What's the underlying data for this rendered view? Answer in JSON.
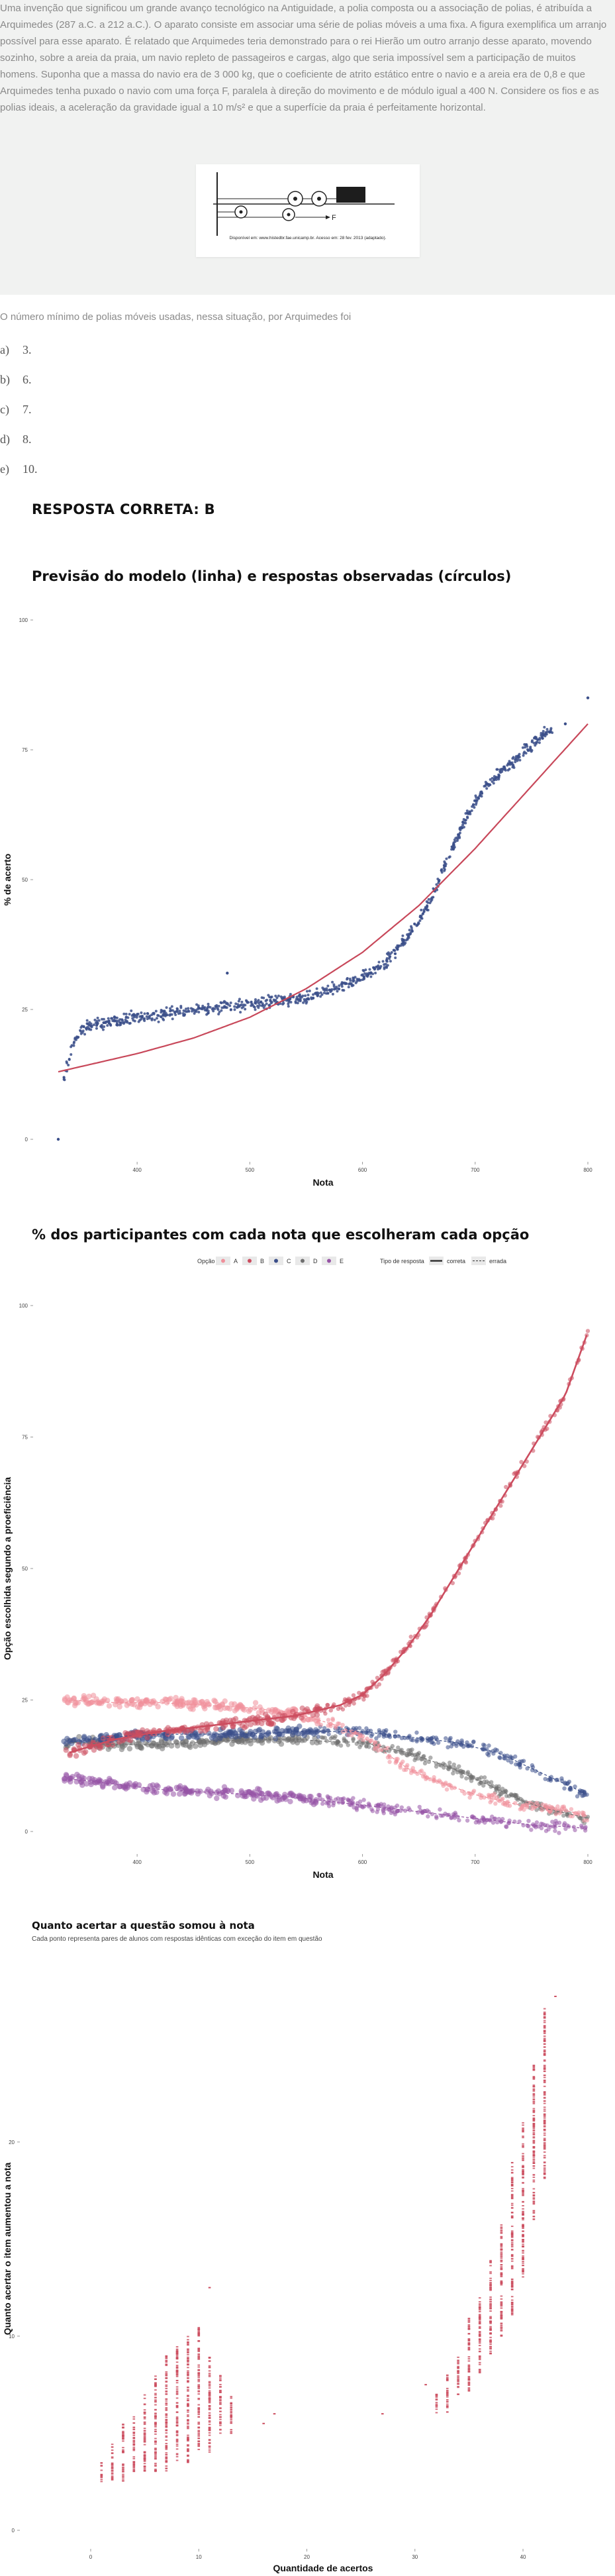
{
  "question": {
    "statement": "Uma invenção que significou um grande avanço tecnológico na Antiguidade, a polia composta ou a associação de polias, é atribuída a Arquimedes (287 a.C. a 212 a.C.). O aparato consiste em associar uma série de polias móveis a uma fixa. A figura exemplifica um arranjo possível para esse aparato. É relatado que Arquimedes teria demonstrado para o rei Hierão um outro arranjo desse aparato, movendo sozinho, sobre a areia da praia, um navio repleto de passageiros e cargas, algo que seria impossível sem a participação de muitos homens. Suponha que a massa do navio era de 3 000 kg, que o coeficiente de atrito estático entre o navio e a areia era de 0,8 e que Arquimedes tenha puxado o navio com uma força F, paralela à direção do movimento e de módulo igual a 400 N. Considere os fios e as polias ideais, a aceleração da gravidade igual a 10 m/s² e que a superfície da praia é perfeitamente horizontal.",
    "figure_caption": "Disponível em: www.histedbr.fae.unicamp.br. Acesso em: 28 fev. 2013 (adaptado).",
    "figure_force_label": "F",
    "prompt": "O número mínimo de polias móveis usadas, nessa situação, por Arquimedes foi",
    "alternatives": [
      {
        "letter": "a)",
        "text": "3."
      },
      {
        "letter": "b)",
        "text": "6."
      },
      {
        "letter": "c)",
        "text": "7."
      },
      {
        "letter": "d)",
        "text": "8."
      },
      {
        "letter": "e)",
        "text": "10."
      }
    ],
    "answer": "RESPOSTA CORRETA: B"
  },
  "colors": {
    "model_line": "#c8485a",
    "observed": "#3b4f8a",
    "A": "#f0909b",
    "B": "#cc4d5f",
    "C": "#3b4f8a",
    "D": "#6f6f6f",
    "E": "#9653a5",
    "accumulated": "#cc4d5f"
  },
  "chart_data": [
    {
      "type": "scatter",
      "title": "Previsão do modelo (linha) e respostas observadas (círculos)",
      "xlabel": "Nota",
      "ylabel": "% de acerto",
      "xlim": [
        330,
        800
      ],
      "ylim": [
        0,
        100
      ],
      "xticks": [
        400,
        500,
        600,
        700,
        800
      ],
      "yticks": [
        0,
        25,
        50,
        75,
        100
      ],
      "grid": false,
      "model_line": {
        "x": [
          330,
          360,
          400,
          450,
          500,
          550,
          600,
          650,
          700,
          750,
          800
        ],
        "y": [
          13,
          14.5,
          16.5,
          19.5,
          23.5,
          29,
          36,
          45,
          56,
          68,
          80
        ]
      },
      "observed": {
        "x": [
          330,
          335,
          340,
          345,
          350,
          360,
          370,
          380,
          400,
          420,
          440,
          460,
          480,
          500,
          520,
          540,
          560,
          580,
          600,
          620,
          640,
          650,
          660,
          670,
          680,
          690,
          700,
          710,
          720,
          730,
          740,
          750,
          760,
          780,
          800
        ],
        "y": [
          0,
          12,
          16,
          19,
          21,
          22,
          22.5,
          23,
          23.5,
          24,
          24.5,
          25,
          25.5,
          26,
          26.5,
          27,
          28,
          29.5,
          31,
          34,
          39,
          42,
          46,
          51,
          56,
          61,
          65,
          68,
          70,
          72,
          74,
          76,
          78,
          80,
          85
        ]
      }
    },
    {
      "type": "scatter",
      "title": "% dos participantes com cada nota que escolheram cada opção",
      "xlabel": "Nota",
      "ylabel": "Opção escolhida segundo a proeficiência",
      "xlim": [
        330,
        800
      ],
      "ylim": [
        0,
        100
      ],
      "xticks": [
        400,
        500,
        600,
        700,
        800
      ],
      "yticks": [
        0,
        25,
        50,
        75,
        100
      ],
      "grid": false,
      "legend": {
        "position": "top",
        "option_title": "Opção",
        "options": [
          "A",
          "B",
          "C",
          "D",
          "E"
        ],
        "type_title": "Tipo de resposta",
        "types": [
          "correta",
          "errada"
        ]
      },
      "x": [
        340,
        380,
        420,
        460,
        500,
        540,
        580,
        600,
        620,
        640,
        660,
        680,
        700,
        720,
        740,
        760,
        780,
        800
      ],
      "series": [
        {
          "name": "A",
          "values": [
            25,
            24.5,
            24.5,
            24,
            23.5,
            22.5,
            20,
            18,
            15,
            12,
            10,
            8.5,
            7,
            6,
            5,
            4.5,
            4,
            3
          ]
        },
        {
          "name": "B",
          "values": [
            15,
            17.5,
            19,
            20,
            21,
            22,
            24,
            26,
            30,
            35,
            41,
            48,
            55,
            62,
            69,
            76,
            83,
            95
          ]
        },
        {
          "name": "C",
          "values": [
            17,
            18,
            18.5,
            18.5,
            18.5,
            19,
            19,
            19,
            18.5,
            18,
            17.5,
            17,
            16,
            15,
            13,
            11,
            9,
            7
          ]
        },
        {
          "name": "D",
          "values": [
            17,
            16.5,
            16.5,
            17,
            17.5,
            17.5,
            17,
            17,
            16,
            15,
            13.5,
            12,
            10,
            8,
            6,
            4.5,
            3.5,
            2.5
          ]
        },
        {
          "name": "E",
          "values": [
            10,
            9,
            8,
            7.5,
            7,
            6.5,
            5.5,
            5,
            4.5,
            4,
            3.5,
            3,
            2.5,
            2,
            1.5,
            1,
            1,
            0.5
          ]
        }
      ]
    },
    {
      "type": "scatter",
      "title": "Quanto acertar a questão somou à nota",
      "subtitle": "Cada ponto representa pares de alunos com respostas idênticas com exceção do item em questão",
      "xlabel": "Quantidade de acertos",
      "ylabel": "Quanto acertar o item aumentou a nota",
      "xlim": [
        -3,
        46
      ],
      "ylim": [
        0,
        29
      ],
      "xticks": [
        0,
        10,
        20,
        30,
        40
      ],
      "yticks": [
        0,
        10,
        20
      ],
      "grid": false,
      "clusters": [
        {
          "x": 1,
          "ymin": 2.5,
          "ymax": 3.5
        },
        {
          "x": 2,
          "ymin": 2.5,
          "ymax": 4.5
        },
        {
          "x": 3,
          "ymin": 2.5,
          "ymax": 5.5
        },
        {
          "x": 4,
          "ymin": 3,
          "ymax": 6
        },
        {
          "x": 5,
          "ymin": 3,
          "ymax": 7
        },
        {
          "x": 6,
          "ymin": 3,
          "ymax": 8
        },
        {
          "x": 7,
          "ymin": 3,
          "ymax": 9
        },
        {
          "x": 8,
          "ymin": 3.5,
          "ymax": 9.5
        },
        {
          "x": 9,
          "ymin": 3.5,
          "ymax": 10
        },
        {
          "x": 10,
          "ymin": 4,
          "ymax": 10.5
        },
        {
          "x": 11,
          "ymin": 4,
          "ymax": 9
        },
        {
          "x": 12,
          "ymin": 5,
          "ymax": 8
        },
        {
          "x": 13,
          "ymin": 5,
          "ymax": 7
        },
        {
          "x": 32,
          "ymin": 6,
          "ymax": 7
        },
        {
          "x": 33,
          "ymin": 6,
          "ymax": 8
        },
        {
          "x": 34,
          "ymin": 7,
          "ymax": 9
        },
        {
          "x": 35,
          "ymin": 7,
          "ymax": 11
        },
        {
          "x": 36,
          "ymin": 8,
          "ymax": 12
        },
        {
          "x": 37,
          "ymin": 9,
          "ymax": 14
        },
        {
          "x": 38,
          "ymin": 10,
          "ymax": 16
        },
        {
          "x": 39,
          "ymin": 11,
          "ymax": 19
        },
        {
          "x": 40,
          "ymin": 13,
          "ymax": 21
        },
        {
          "x": 41,
          "ymin": 16,
          "ymax": 24
        },
        {
          "x": 42,
          "ymin": 18,
          "ymax": 27
        }
      ],
      "points": [
        {
          "x": 11,
          "y": 12.5
        },
        {
          "x": 9,
          "y": 3.5
        },
        {
          "x": 16,
          "y": 5.5
        },
        {
          "x": 17,
          "y": 6
        },
        {
          "x": 27,
          "y": 6
        },
        {
          "x": 31,
          "y": 7.5
        },
        {
          "x": 43,
          "y": 27.5
        }
      ]
    }
  ]
}
